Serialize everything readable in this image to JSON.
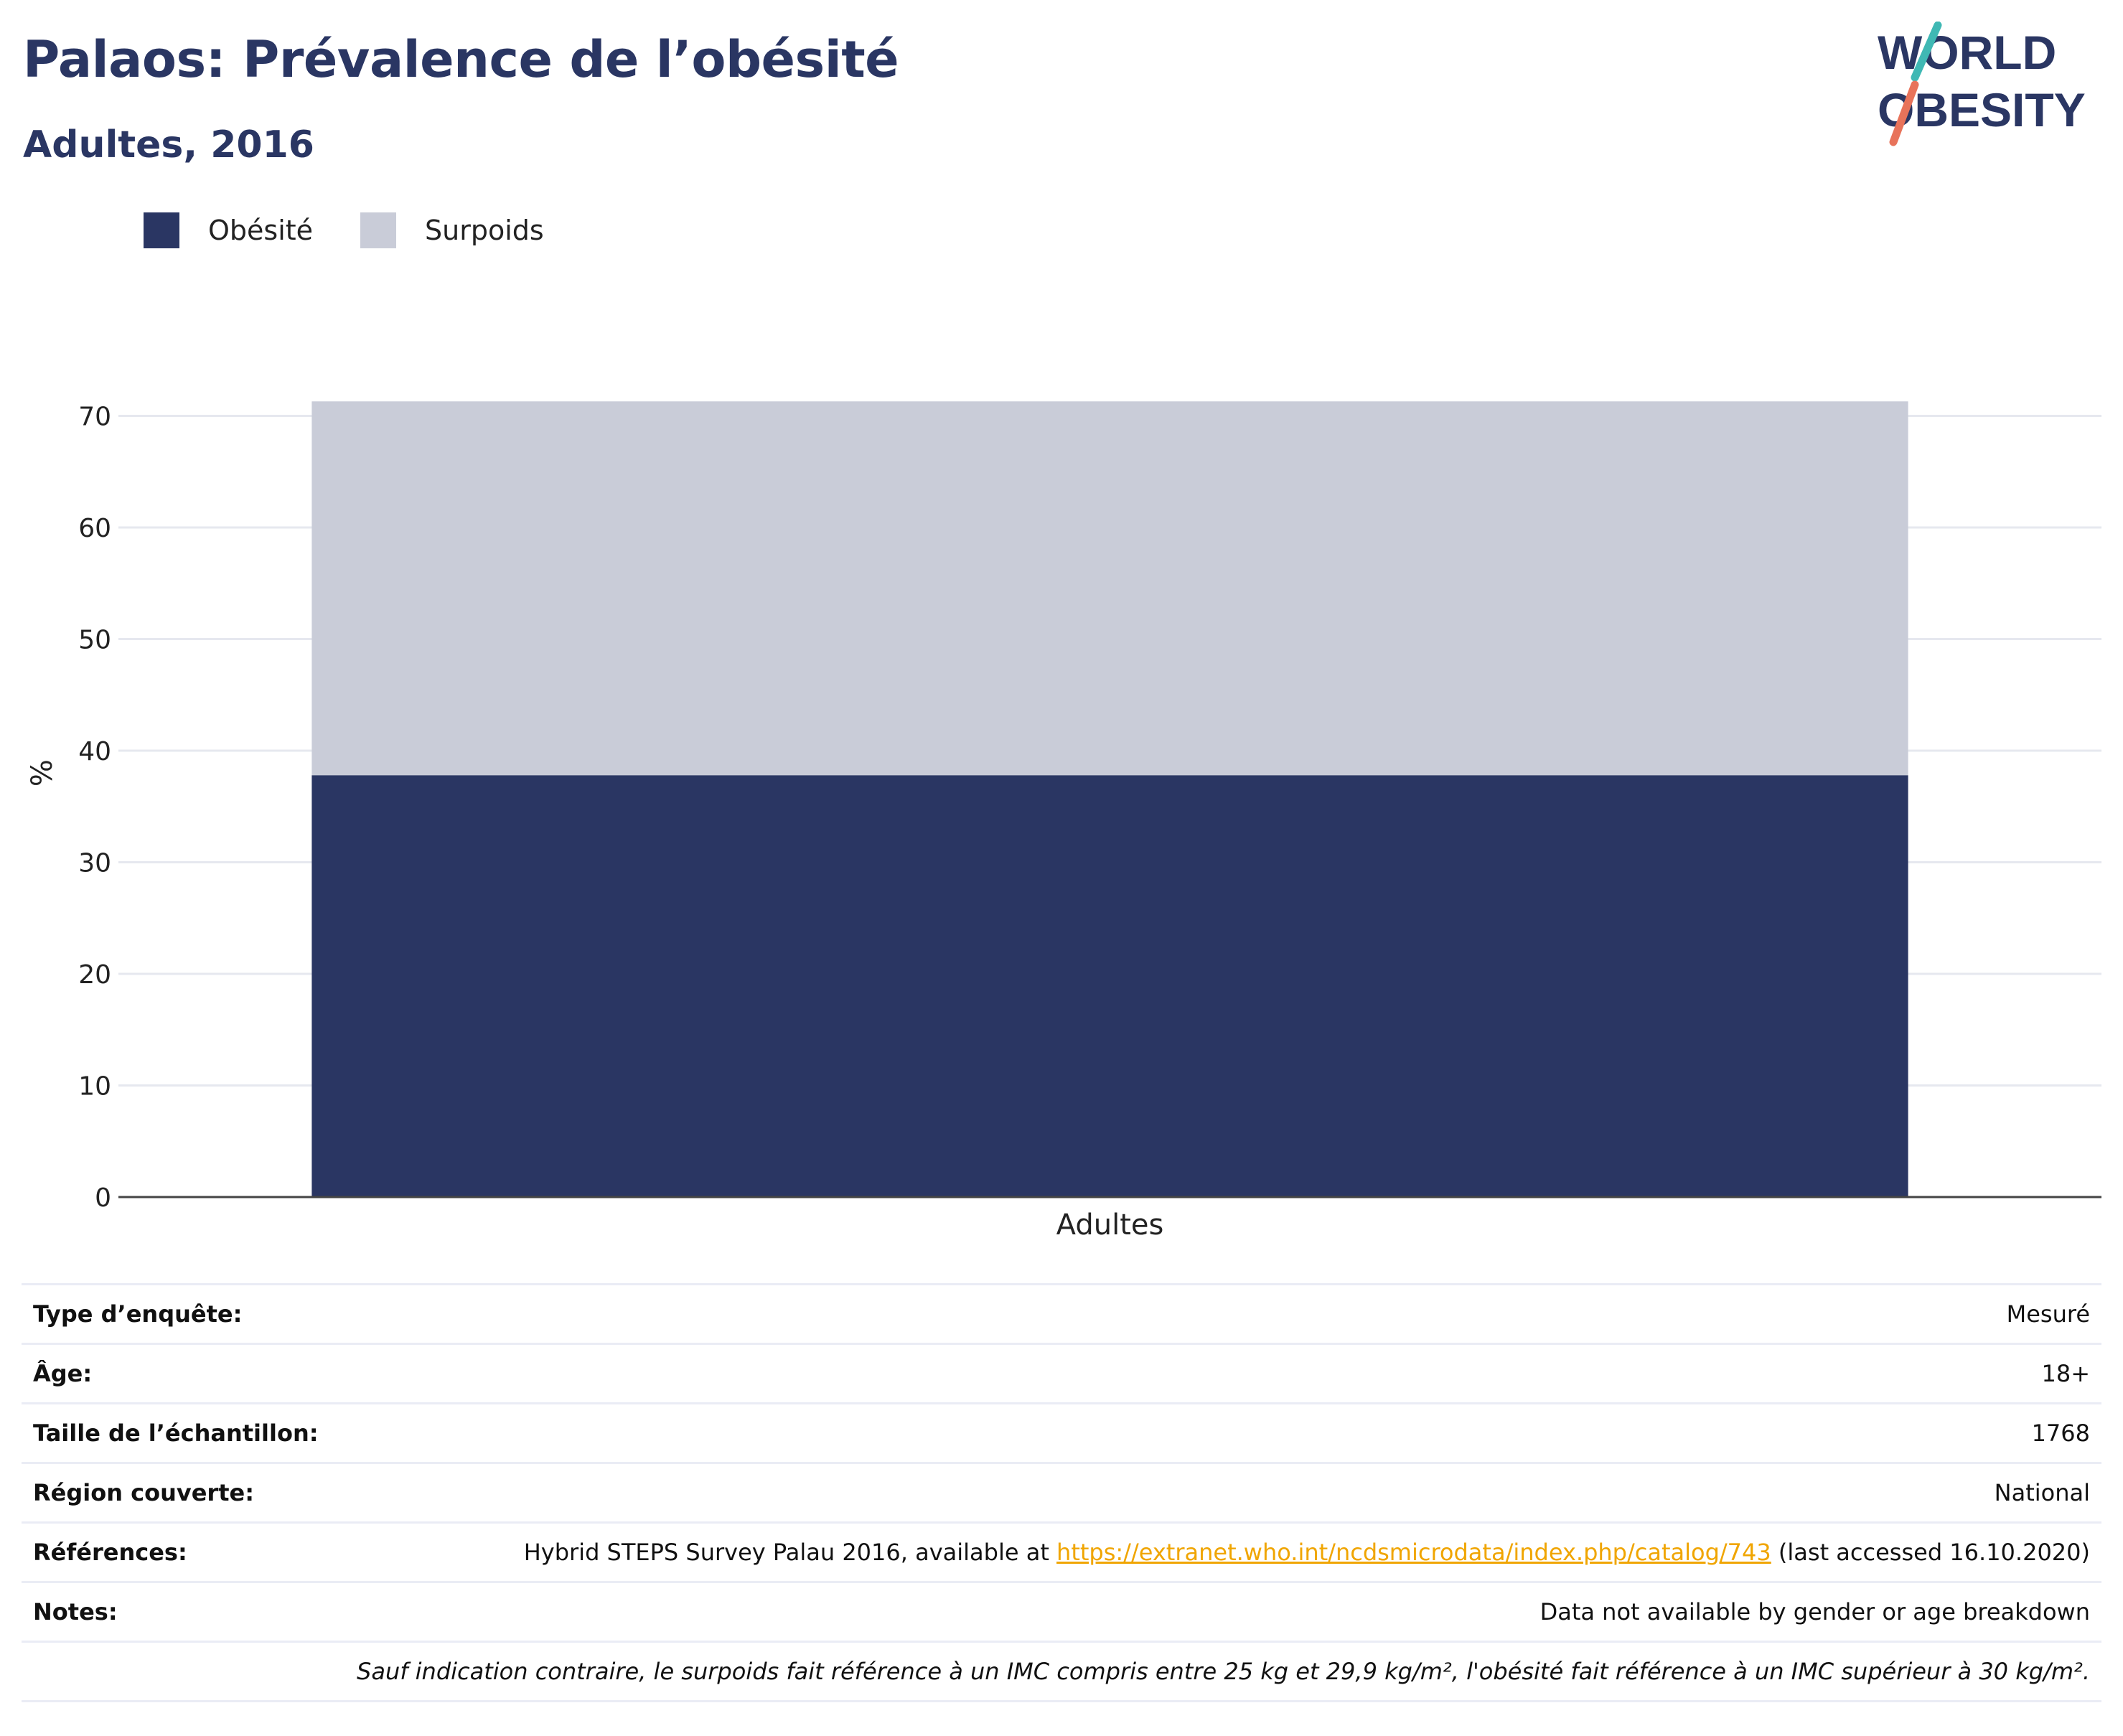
{
  "header": {
    "title": "Palaos: Prévalence de l’obésité",
    "subtitle": "Adultes, 2016",
    "logo_line1": "WORLD",
    "logo_line2": "OBESITY"
  },
  "colors": {
    "obesity": "#2a3663",
    "overweight": "#c9ccd8",
    "title": "#2a3663",
    "link": "#f0a500",
    "logo_teal": "#3fb8b4",
    "logo_coral": "#e8735a"
  },
  "legend": [
    {
      "label": "Obésité",
      "color": "#2a3663"
    },
    {
      "label": "Surpoids",
      "color": "#c9ccd8"
    }
  ],
  "chart_data": {
    "type": "bar",
    "stacked": true,
    "categories": [
      "Adultes"
    ],
    "series": [
      {
        "name": "Obésité",
        "values": [
          37.8
        ]
      },
      {
        "name": "Surpoids",
        "values": [
          33.5
        ]
      }
    ],
    "ylabel": "%",
    "ylim": [
      0,
      75
    ],
    "yticks": [
      0,
      10,
      20,
      30,
      40,
      50,
      60,
      70
    ],
    "grid": true,
    "legend_position": "top-left"
  },
  "info": {
    "survey_type": {
      "label": "Type d’enquête:",
      "value": "Mesuré"
    },
    "age": {
      "label": "Âge:",
      "value": "18+"
    },
    "sample_size": {
      "label": "Taille de l’échantillon:",
      "value": "1768"
    },
    "region": {
      "label": "Région couverte:",
      "value": "National"
    },
    "references": {
      "label": "Références:",
      "prefix": "Hybrid STEPS Survey Palau 2016, available at ",
      "link": "https://extranet.who.int/ncdsmicrodata/index.php/catalog/743",
      "suffix": " (last accessed 16.10.2020)"
    },
    "notes": {
      "label": "Notes:",
      "value": "Data not available by gender or age breakdown"
    },
    "footnote": "Sauf indication contraire, le surpoids fait référence à un IMC compris entre 25 kg et 29,9 kg/m², l'obésité fait référence à un IMC supérieur à 30 kg/m²."
  }
}
